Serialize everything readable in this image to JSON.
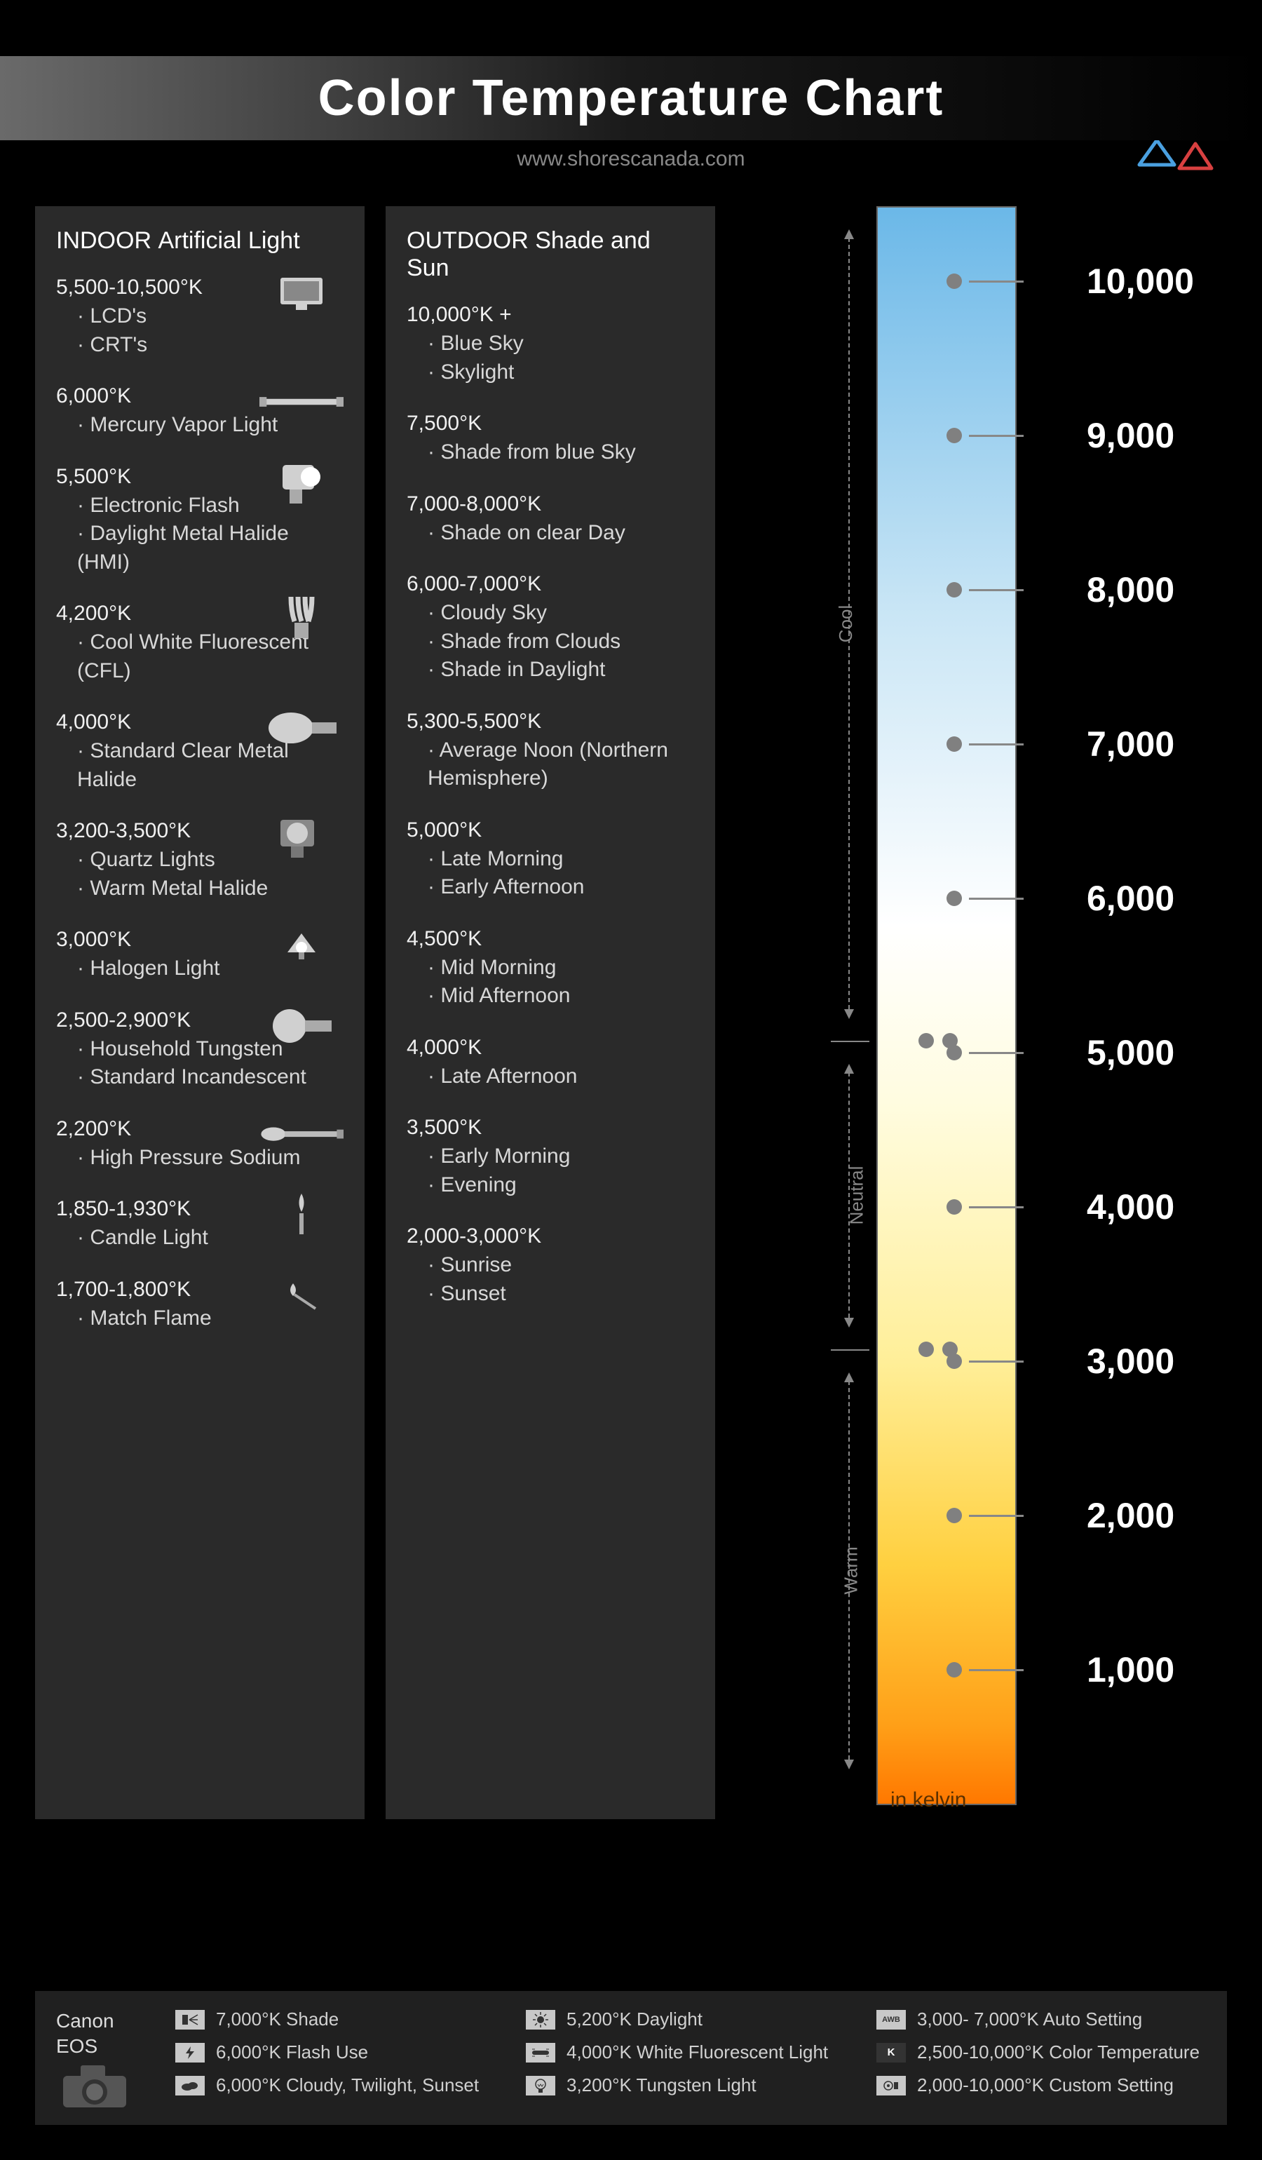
{
  "title": "Color Temperature Chart",
  "subtitle": "www.shorescanada.com",
  "logo_colors": {
    "orange": "#f5a623",
    "blue": "#4aa0e0",
    "red": "#d84040"
  },
  "columns": {
    "indoor": {
      "heading_bold": "INDOOR",
      "heading_light": "Artificial Light",
      "entries": [
        {
          "temp": "5,500-10,500°K",
          "items": [
            "LCD's",
            "CRT's"
          ],
          "icon": "monitor"
        },
        {
          "temp": "6,000°K",
          "items": [
            "Mercury Vapor Light"
          ],
          "icon": "tube"
        },
        {
          "temp": "5,500°K",
          "items": [
            "Electronic Flash",
            "Daylight Metal Halide (HMI)"
          ],
          "icon": "flash-head"
        },
        {
          "temp": "4,200°K",
          "items": [
            "Cool White Fluorescent (CFL)"
          ],
          "icon": "cfl"
        },
        {
          "temp": "4,000°K",
          "items": [
            "Standard Clear Metal Halide"
          ],
          "icon": "hid"
        },
        {
          "temp": "3,200-3,500°K",
          "items": [
            "Quartz Lights",
            "Warm Metal Halide"
          ],
          "icon": "fresnel"
        },
        {
          "temp": "3,000°K",
          "items": [
            "Halogen Light"
          ],
          "icon": "halogen"
        },
        {
          "temp": "2,500-2,900°K",
          "items": [
            "Household Tungsten",
            "Standard Incandescent"
          ],
          "icon": "bulb"
        },
        {
          "temp": "2,200°K",
          "items": [
            "High Pressure Sodium"
          ],
          "icon": "sodium"
        },
        {
          "temp": "1,850-1,930°K",
          "items": [
            "Candle Light"
          ],
          "icon": "candle"
        },
        {
          "temp": "1,700-1,800°K",
          "items": [
            "Match Flame"
          ],
          "icon": "match"
        }
      ]
    },
    "outdoor": {
      "heading_bold": "OUTDOOR",
      "heading_light": "Shade and Sun",
      "entries": [
        {
          "temp": "10,000°K +",
          "items": [
            "Blue Sky",
            "Skylight"
          ]
        },
        {
          "temp": "7,500°K",
          "items": [
            "Shade from blue Sky"
          ]
        },
        {
          "temp": "7,000-8,000°K",
          "items": [
            "Shade on clear Day"
          ]
        },
        {
          "temp": "6,000-7,000°K",
          "items": [
            "Cloudy Sky",
            "Shade from Clouds",
            "Shade in Daylight"
          ]
        },
        {
          "temp": "5,300-5,500°K",
          "items": [
            "Average Noon (Northern Hemisphere)"
          ]
        },
        {
          "temp": "5,000°K",
          "items": [
            "Late Morning",
            "Early Afternoon"
          ]
        },
        {
          "temp": "4,500°K",
          "items": [
            "Mid Morning",
            "Mid Afternoon"
          ]
        },
        {
          "temp": "4,000°K",
          "items": [
            "Late Afternoon"
          ]
        },
        {
          "temp": "3,500°K",
          "items": [
            "Early Morning",
            "Evening"
          ]
        },
        {
          "temp": "2,000-3,000°K",
          "items": [
            "Sunrise",
            "Sunset"
          ]
        }
      ]
    }
  },
  "scale": {
    "gradient": [
      {
        "stop": 0,
        "color": "#6bb8e8"
      },
      {
        "stop": 25,
        "color": "#c8e5f5"
      },
      {
        "stop": 45,
        "color": "#ffffff"
      },
      {
        "stop": 56,
        "color": "#fffce0"
      },
      {
        "stop": 72,
        "color": "#ffef9a"
      },
      {
        "stop": 85,
        "color": "#ffd040"
      },
      {
        "stop": 95,
        "color": "#ffa018"
      },
      {
        "stop": 100,
        "color": "#ff7800"
      }
    ],
    "ticks": [
      {
        "value": "10,000",
        "pos": 90
      },
      {
        "value": "9,000",
        "pos": 310
      },
      {
        "value": "8,000",
        "pos": 530
      },
      {
        "value": "7,000",
        "pos": 750
      },
      {
        "value": "6,000",
        "pos": 970
      },
      {
        "value": "5,000",
        "pos": 1190
      },
      {
        "value": "4,000",
        "pos": 1410
      },
      {
        "value": "3,000",
        "pos": 1630
      },
      {
        "value": "2,000",
        "pos": 1850
      },
      {
        "value": "1,000",
        "pos": 2070
      }
    ],
    "regions": [
      {
        "label": "Cool",
        "start": 0,
        "end": 1190
      },
      {
        "label": "Neutral",
        "start": 1190,
        "end": 1630
      },
      {
        "label": "Warm",
        "start": 1630,
        "end": 2260
      }
    ],
    "unit_label": "in kelvin",
    "dot_color": "#808080",
    "line_color": "#888888",
    "tick_font_size": 50,
    "tick_font_color": "#ffffff"
  },
  "footer": {
    "brand_line1": "Canon",
    "brand_line2": "EOS",
    "settings": [
      [
        {
          "icon": "shade",
          "text": "7,000°K Shade"
        },
        {
          "icon": "flash",
          "text": "6,000°K Flash Use"
        },
        {
          "icon": "cloudy",
          "text": "6,000°K Cloudy, Twilight, Sunset"
        }
      ],
      [
        {
          "icon": "sun",
          "text": "5,200°K Daylight"
        },
        {
          "icon": "fluoro",
          "text": "4,000°K White Fluorescent Light"
        },
        {
          "icon": "tungsten",
          "text": "3,200°K Tungsten Light"
        }
      ],
      [
        {
          "icon": "awb",
          "text": "3,000- 7,000°K Auto Setting"
        },
        {
          "icon": "k",
          "text": "2,500-10,000°K Color Temperature"
        },
        {
          "icon": "custom",
          "text": "2,000-10,000°K Custom Setting"
        }
      ]
    ]
  },
  "colors": {
    "page_bg": "#000000",
    "panel_bg": "#2a2a2a",
    "footer_bg": "#202020",
    "text_primary": "#e8e8e8",
    "text_heading": "#ffffff",
    "text_muted": "#888888"
  }
}
